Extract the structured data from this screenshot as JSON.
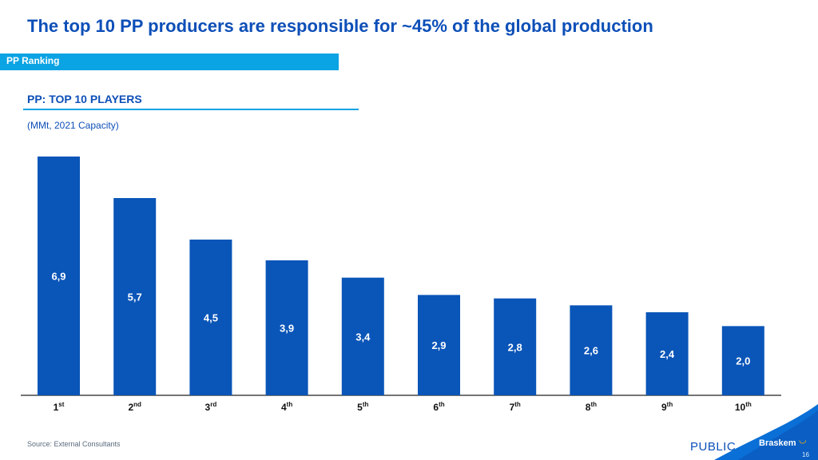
{
  "header": {
    "title": "The top 10 PP producers are responsible for ~45% of the global production",
    "section_label": "PP Ranking"
  },
  "chart_heading": "PP: TOP 10 PLAYERS",
  "chart_subtitle": "(MMt, 2021 Capacity)",
  "chart_data": {
    "type": "bar",
    "title": "PP: TOP 10 PLAYERS",
    "subtitle": "(MMt, 2021 Capacity)",
    "categories": [
      {
        "num": "1",
        "suffix": "st"
      },
      {
        "num": "2",
        "suffix": "nd"
      },
      {
        "num": "3",
        "suffix": "rd"
      },
      {
        "num": "4",
        "suffix": "th"
      },
      {
        "num": "5",
        "suffix": "th"
      },
      {
        "num": "6",
        "suffix": "th"
      },
      {
        "num": "7",
        "suffix": "th"
      },
      {
        "num": "8",
        "suffix": "th"
      },
      {
        "num": "9",
        "suffix": "th"
      },
      {
        "num": "10",
        "suffix": "th"
      }
    ],
    "values": [
      6.9,
      5.7,
      4.5,
      3.9,
      3.4,
      2.9,
      2.8,
      2.6,
      2.4,
      2.0
    ],
    "value_labels": [
      "6,9",
      "5,7",
      "4,5",
      "3,9",
      "3,4",
      "2,9",
      "2,8",
      "2,6",
      "2,4",
      "2,0"
    ],
    "xlabel": "",
    "ylabel": "",
    "ylim": [
      0,
      6.9
    ],
    "grid": false,
    "legend": "none",
    "bar_color": "#0a55b8",
    "label_color": "#ffffff",
    "axis_color": "#222222"
  },
  "footer": {
    "source": "Source: External Consultants",
    "classification": "PUBLIC",
    "brand": "Braskem",
    "page_number": "16"
  },
  "colors": {
    "title": "#0d4fb8",
    "section_band": "#0aa3e3",
    "corner_wave": "#0a6fd6"
  }
}
